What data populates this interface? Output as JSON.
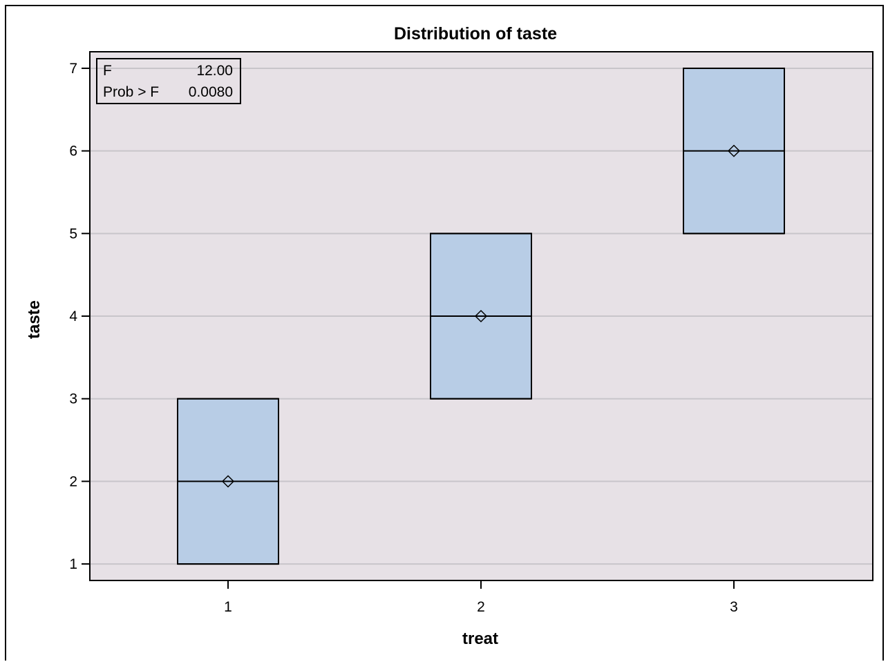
{
  "chart_data": {
    "type": "box",
    "title": "Distribution of taste",
    "xlabel": "treat",
    "ylabel": "taste",
    "categories": [
      "1",
      "2",
      "3"
    ],
    "ylim": [
      0.8,
      7.2
    ],
    "yticks": [
      1,
      2,
      3,
      4,
      5,
      6,
      7
    ],
    "grid": true,
    "boxes": [
      {
        "category": "1",
        "min": 1,
        "q1": 1,
        "median": 2,
        "q3": 3,
        "max": 3,
        "mean": 2
      },
      {
        "category": "2",
        "min": 3,
        "q1": 3,
        "median": 4,
        "q3": 5,
        "max": 5,
        "mean": 4
      },
      {
        "category": "3",
        "min": 5,
        "q1": 5,
        "median": 6,
        "q3": 7,
        "max": 7,
        "mean": 6
      }
    ],
    "stats_inset": {
      "placement": "top-left",
      "rows": [
        {
          "label": "F",
          "value": "12.00"
        },
        {
          "label": "Prob > F",
          "value": "0.0080"
        }
      ]
    },
    "colors": {
      "plot_background": "#e7e1e6",
      "box_fill": "#b8cde6",
      "gridline": "#c8c5ca",
      "outline": "#000000"
    }
  }
}
